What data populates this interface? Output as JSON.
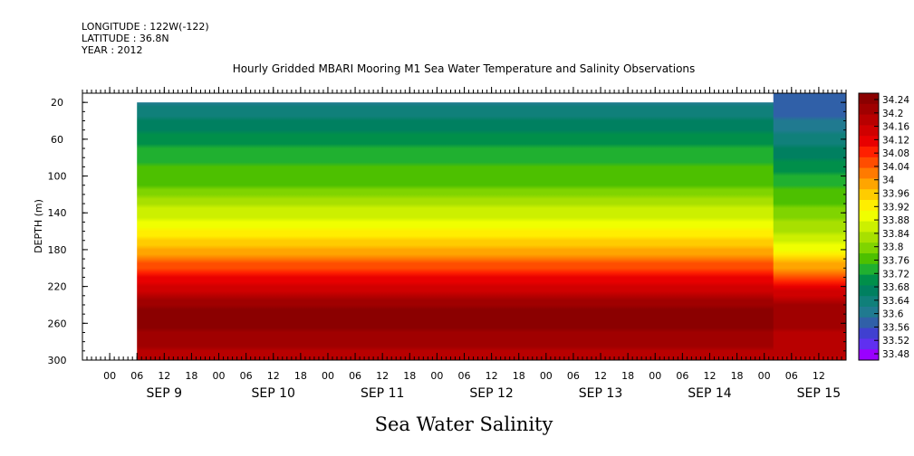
{
  "header": {
    "longitude": "LONGITUDE : 122W(-122)",
    "latitude": "LATITUDE : 36.8N",
    "year": "YEAR : 2012"
  },
  "chart_data": {
    "type": "heatmap",
    "title": "Hourly Gridded MBARI Mooring M1 Sea Water Temperature and Salinity Observations",
    "xlabel_bottom": "Sea Water Salinity",
    "ylabel": "DEPTH (m)",
    "variable": "Sea Water Salinity",
    "x_range": [
      "SEP 8 18:00",
      "SEP 15 18:00"
    ],
    "y_range": [
      300,
      10
    ],
    "y_ticks": [
      20,
      60,
      100,
      140,
      180,
      220,
      260,
      300
    ],
    "hour_ticks": [
      "00",
      "06",
      "12",
      "18",
      "00",
      "06",
      "12",
      "18",
      "00",
      "06",
      "12",
      "18",
      "00",
      "06",
      "12",
      "18",
      "00",
      "06",
      "12",
      "18",
      "00",
      "06",
      "12",
      "18",
      "00",
      "06",
      "12"
    ],
    "day_labels": [
      "SEP 9",
      "SEP 10",
      "SEP 11",
      "SEP 12",
      "SEP 13",
      "SEP 14",
      "SEP 15"
    ],
    "data_start": "SEP 9 06:00",
    "data_top_depth": 20,
    "sep15_top_depth": 10,
    "colorbar_levels": [
      "34.24",
      "34.2",
      "34.16",
      "34.12",
      "34.08",
      "34.04",
      "34",
      "33.96",
      "33.92",
      "33.88",
      "33.84",
      "33.8",
      "33.76",
      "33.72",
      "33.68",
      "33.64",
      "33.6",
      "33.56",
      "33.52",
      "33.48"
    ],
    "colorbar_colors": [
      "#8b0000",
      "#a00000",
      "#b80000",
      "#d00000",
      "#e80000",
      "#ff2000",
      "#ff4d00",
      "#ff7a00",
      "#ffa500",
      "#ffcc00",
      "#ffee00",
      "#f0ff00",
      "#ccf000",
      "#a8e000",
      "#80d400",
      "#4dc000",
      "#20b030",
      "#008f4a",
      "#008060",
      "#10807a",
      "#207a90",
      "#3060a8",
      "#4040d0",
      "#6030f0",
      "#9a00ff"
    ],
    "profile_depths": [
      20,
      40,
      60,
      80,
      100,
      120,
      140,
      160,
      180,
      200,
      220,
      240,
      260,
      280,
      300
    ],
    "profile_salinity": [
      33.62,
      33.66,
      33.7,
      33.74,
      33.76,
      33.8,
      33.86,
      33.92,
      33.98,
      34.06,
      34.14,
      34.22,
      34.24,
      34.2,
      34.18
    ],
    "sep15_profile_salinity": [
      33.56,
      33.6,
      33.64,
      33.68,
      33.72,
      33.76,
      33.8,
      33.84,
      33.9,
      34.0,
      34.12,
      34.2,
      34.2,
      34.18,
      34.16
    ]
  }
}
